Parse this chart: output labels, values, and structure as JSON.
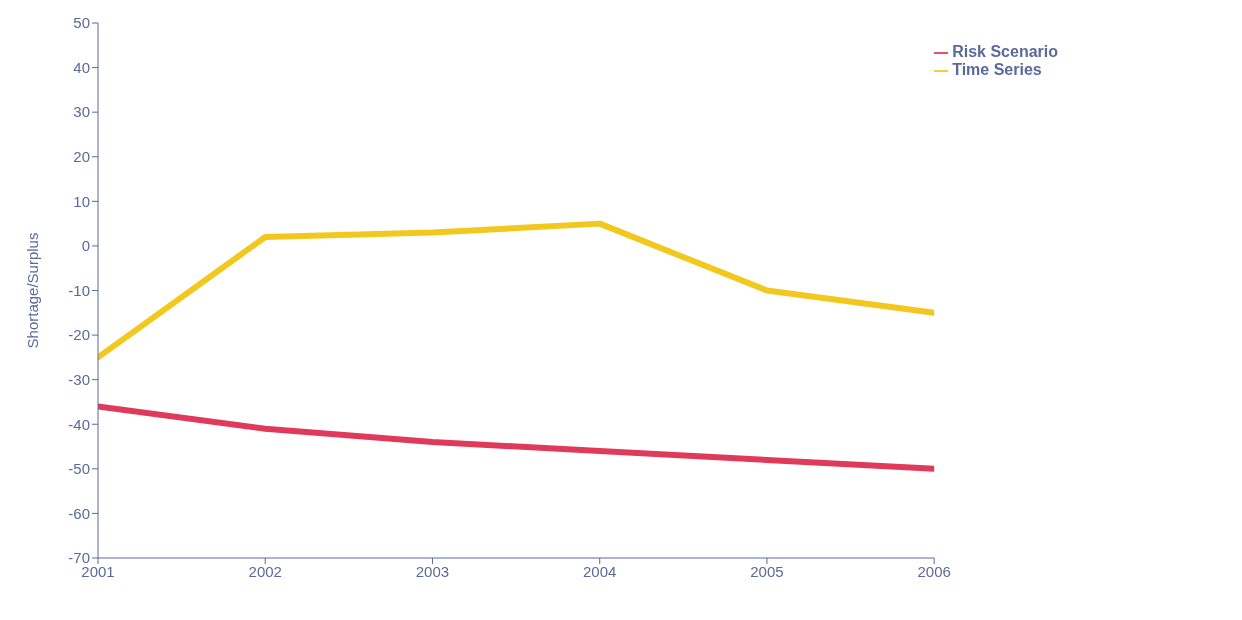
{
  "chart_data": {
    "type": "line",
    "ylabel": "Shortage/Surplus",
    "x": [
      2001,
      2002,
      2003,
      2004,
      2005,
      2006
    ],
    "xlim": [
      2001,
      2006
    ],
    "xticks": [
      2001,
      2002,
      2003,
      2004,
      2005,
      2006
    ],
    "ylim": [
      -70,
      50
    ],
    "yticks": [
      -70,
      -60,
      -50,
      -40,
      -30,
      -20,
      -10,
      0,
      10,
      20,
      30,
      40,
      50
    ],
    "series": [
      {
        "name": "Time Series",
        "color": "#f2c81e",
        "values": [
          -25,
          2,
          3,
          5,
          -10,
          -15
        ]
      },
      {
        "name": "Risk Scenario",
        "color": "#e03a5a",
        "values": [
          -36,
          -41,
          -44,
          -46,
          -48,
          -50
        ]
      }
    ],
    "grid": false,
    "legend": "top right",
    "marker": "none",
    "line_style": "solid"
  }
}
